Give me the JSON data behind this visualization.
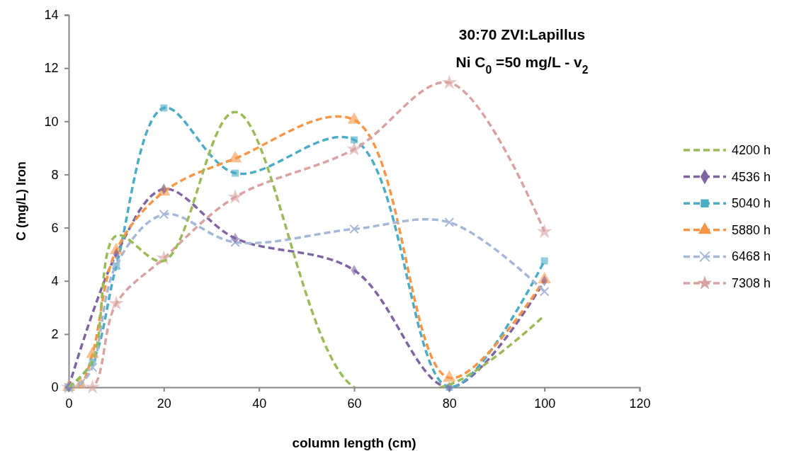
{
  "chart_data": {
    "type": "line",
    "title": "30:70 ZVI:Lapillus",
    "subtitle": "Ni C$_{0}$ =50 mg/L - v$_{2}$",
    "xlabel": "column length (cm)",
    "ylabel": "C (mg/L) Iron",
    "xlim": [
      0,
      120
    ],
    "xticks": [
      0,
      20,
      40,
      60,
      80,
      100,
      120
    ],
    "ylim": [
      0,
      14
    ],
    "yticks": [
      0,
      2,
      4,
      6,
      8,
      10,
      12,
      14
    ],
    "grid": false,
    "legend": "right",
    "line_style": "dashed",
    "series": [
      {
        "name": "4200 h",
        "color": "#9bbb59",
        "marker": "none",
        "x": [
          0,
          5,
          10,
          20,
          35,
          60,
          80,
          100
        ],
        "values": [
          0,
          1,
          5.7,
          4.75,
          10.35,
          0,
          0.1,
          2.7
        ]
      },
      {
        "name": "4536 h",
        "color": "#8064a2",
        "marker": "diamond",
        "x": [
          0,
          10,
          20,
          35,
          60,
          80,
          100
        ],
        "values": [
          0,
          5,
          7.45,
          5.6,
          4.4,
          0,
          4
        ]
      },
      {
        "name": "5040 h",
        "color": "#4bacc6",
        "marker": "square",
        "x": [
          0,
          5,
          10,
          20,
          35,
          60,
          80,
          100
        ],
        "values": [
          0,
          0.95,
          4.55,
          10.5,
          8.05,
          9.3,
          0,
          4.75
        ]
      },
      {
        "name": "5880 h",
        "color": "#f79646",
        "marker": "triangle",
        "x": [
          0,
          2.5,
          5,
          10,
          20,
          35,
          60,
          80,
          100
        ],
        "values": [
          0,
          0.1,
          1.25,
          5.15,
          7.35,
          8.6,
          10.05,
          0.35,
          4.05
        ]
      },
      {
        "name": "6468 h",
        "color": "#a6b8d8",
        "marker": "cross",
        "x": [
          0,
          2.5,
          5,
          10,
          20,
          35,
          60,
          80,
          100
        ],
        "values": [
          0,
          0.15,
          0.75,
          4.6,
          6.5,
          5.45,
          5.95,
          6.2,
          3.6
        ]
      },
      {
        "name": "7308 h",
        "color": "#d9a3a2",
        "marker": "star",
        "x": [
          0,
          5,
          10,
          20,
          35,
          60,
          80,
          100
        ],
        "values": [
          0,
          0,
          3.15,
          4.85,
          7.15,
          8.95,
          11.45,
          5.85
        ]
      }
    ]
  }
}
